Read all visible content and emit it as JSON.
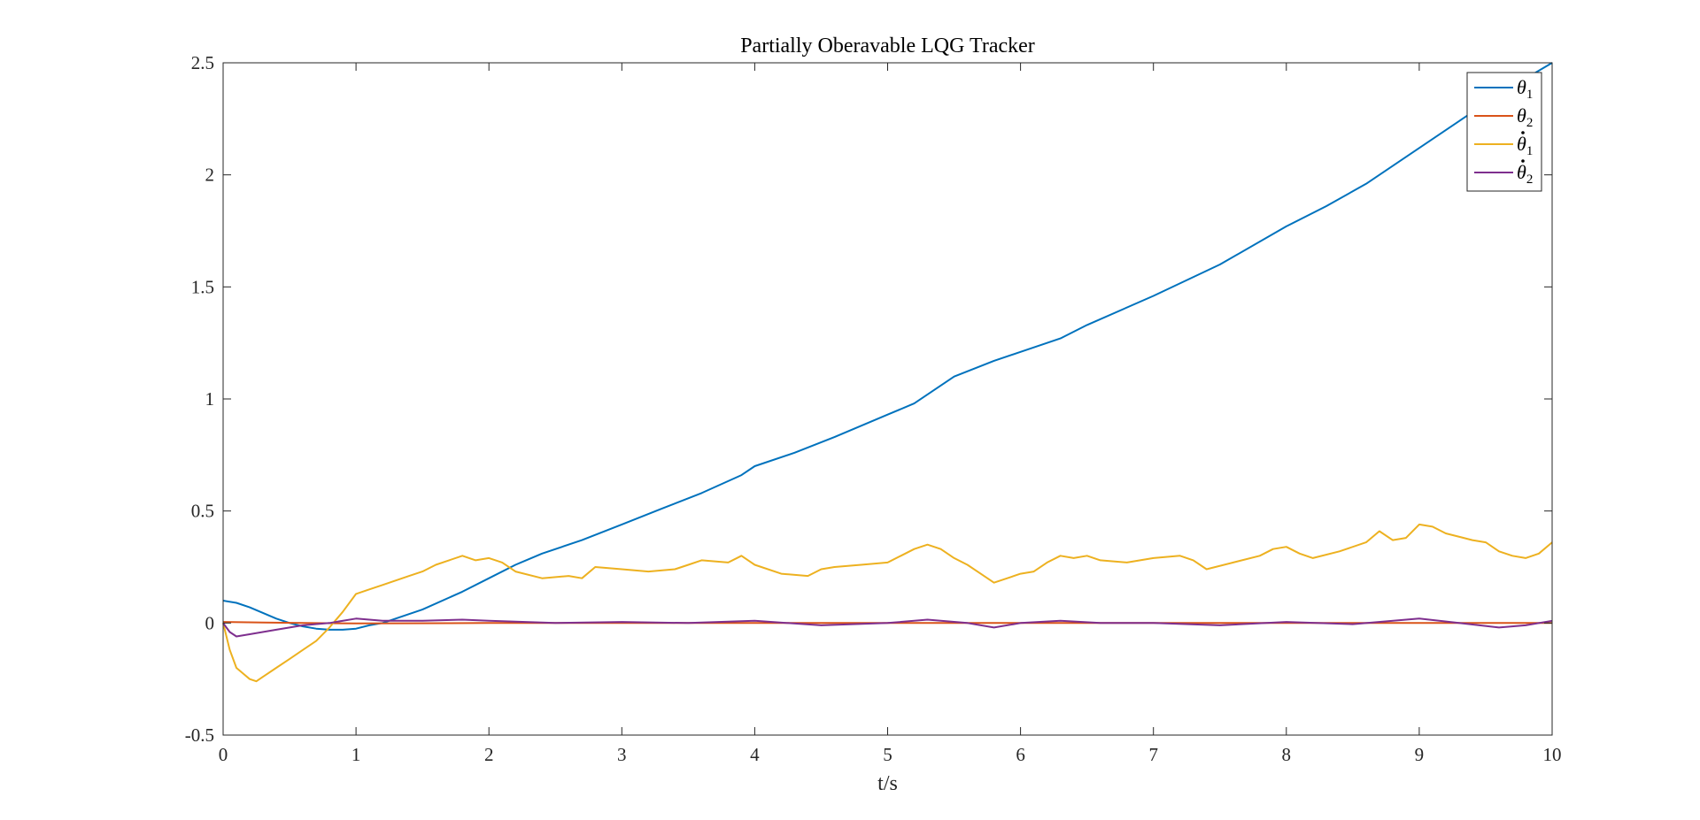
{
  "chart_data": {
    "type": "line",
    "title": "Partially Oberavable LQG Tracker",
    "xlabel": "t/s",
    "ylabel": "",
    "xlim": [
      0,
      10
    ],
    "ylim": [
      -0.5,
      2.5
    ],
    "xticks": [
      0,
      1,
      2,
      3,
      4,
      5,
      6,
      7,
      8,
      9,
      10
    ],
    "xtick_labels": [
      "0",
      "1",
      "2",
      "3",
      "4",
      "5",
      "6",
      "7",
      "8",
      "9",
      "10"
    ],
    "yticks": [
      -0.5,
      0,
      0.5,
      1,
      1.5,
      2,
      2.5
    ],
    "ytick_labels": [
      "-0.5",
      "0",
      "0.5",
      "1",
      "1.5",
      "2",
      "2.5"
    ],
    "grid": false,
    "legend_position": "top-right",
    "series": [
      {
        "name": "θ1",
        "legend_symbol": "θ",
        "legend_dot": false,
        "legend_sub": "1",
        "color": "#0072BD",
        "x": [
          0,
          0.1,
          0.2,
          0.3,
          0.4,
          0.5,
          0.6,
          0.7,
          0.8,
          0.9,
          1.0,
          1.1,
          1.2,
          1.5,
          1.8,
          2.0,
          2.2,
          2.4,
          2.7,
          3.0,
          3.3,
          3.6,
          3.9,
          4.0,
          4.3,
          4.6,
          5.0,
          5.2,
          5.5,
          5.8,
          6.0,
          6.3,
          6.5,
          7.0,
          7.5,
          8.0,
          8.3,
          8.6,
          9.0,
          9.3,
          9.6,
          10.0
        ],
        "y": [
          0.1,
          0.09,
          0.07,
          0.045,
          0.02,
          0.0,
          -0.015,
          -0.025,
          -0.03,
          -0.03,
          -0.025,
          -0.01,
          0.0,
          0.06,
          0.14,
          0.2,
          0.26,
          0.31,
          0.37,
          0.44,
          0.51,
          0.58,
          0.66,
          0.7,
          0.76,
          0.83,
          0.93,
          0.98,
          1.1,
          1.17,
          1.21,
          1.27,
          1.33,
          1.46,
          1.6,
          1.77,
          1.86,
          1.96,
          2.12,
          2.24,
          2.36,
          2.5
        ]
      },
      {
        "name": "θ2",
        "legend_symbol": "θ",
        "legend_dot": false,
        "legend_sub": "2",
        "color": "#D95319",
        "x": [
          0,
          0.3,
          0.6,
          1.0,
          2.0,
          4.0,
          6.0,
          8.0,
          10.0
        ],
        "y": [
          0.005,
          0.002,
          0.0,
          -0.002,
          0.0,
          0.0,
          0.0,
          0.0,
          0.0
        ]
      },
      {
        "name": "θ̇1",
        "legend_symbol": "θ",
        "legend_dot": true,
        "legend_sub": "1",
        "color": "#EDB120",
        "x": [
          0,
          0.05,
          0.1,
          0.2,
          0.25,
          0.3,
          0.4,
          0.5,
          0.6,
          0.7,
          0.8,
          0.9,
          1.0,
          1.1,
          1.2,
          1.3,
          1.4,
          1.5,
          1.6,
          1.7,
          1.8,
          1.9,
          2.0,
          2.1,
          2.2,
          2.4,
          2.6,
          2.7,
          2.8,
          3.0,
          3.2,
          3.4,
          3.5,
          3.6,
          3.8,
          3.9,
          4.0,
          4.2,
          4.4,
          4.5,
          4.6,
          4.8,
          5.0,
          5.1,
          5.2,
          5.3,
          5.4,
          5.5,
          5.6,
          5.7,
          5.8,
          5.9,
          6.0,
          6.1,
          6.2,
          6.3,
          6.4,
          6.5,
          6.6,
          6.8,
          7.0,
          7.2,
          7.3,
          7.4,
          7.6,
          7.8,
          7.9,
          8.0,
          8.1,
          8.2,
          8.4,
          8.6,
          8.7,
          8.8,
          8.9,
          9.0,
          9.1,
          9.2,
          9.4,
          9.5,
          9.6,
          9.7,
          9.8,
          9.9,
          10.0
        ],
        "y": [
          0.0,
          -0.12,
          -0.2,
          -0.25,
          -0.26,
          -0.24,
          -0.2,
          -0.16,
          -0.12,
          -0.08,
          -0.02,
          0.05,
          0.13,
          0.15,
          0.17,
          0.19,
          0.21,
          0.23,
          0.26,
          0.28,
          0.3,
          0.28,
          0.29,
          0.27,
          0.23,
          0.2,
          0.21,
          0.2,
          0.25,
          0.24,
          0.23,
          0.24,
          0.26,
          0.28,
          0.27,
          0.3,
          0.26,
          0.22,
          0.21,
          0.24,
          0.25,
          0.26,
          0.27,
          0.3,
          0.33,
          0.35,
          0.33,
          0.29,
          0.26,
          0.22,
          0.18,
          0.2,
          0.22,
          0.23,
          0.27,
          0.3,
          0.29,
          0.3,
          0.28,
          0.27,
          0.29,
          0.3,
          0.28,
          0.24,
          0.27,
          0.3,
          0.33,
          0.34,
          0.31,
          0.29,
          0.32,
          0.36,
          0.41,
          0.37,
          0.38,
          0.44,
          0.43,
          0.4,
          0.37,
          0.36,
          0.32,
          0.3,
          0.29,
          0.31,
          0.36
        ]
      },
      {
        "name": "θ̇2",
        "legend_symbol": "θ",
        "legend_dot": true,
        "legend_sub": "2",
        "color": "#7E2F8E",
        "x": [
          0,
          0.05,
          0.1,
          0.2,
          0.4,
          0.6,
          0.8,
          1.0,
          1.2,
          1.5,
          1.8,
          2.0,
          2.5,
          3.0,
          3.5,
          4.0,
          4.5,
          5.0,
          5.3,
          5.6,
          5.8,
          6.0,
          6.3,
          6.6,
          7.0,
          7.5,
          8.0,
          8.5,
          9.0,
          9.3,
          9.6,
          9.8,
          10.0
        ],
        "y": [
          0.0,
          -0.04,
          -0.06,
          -0.05,
          -0.03,
          -0.01,
          0.0,
          0.02,
          0.01,
          0.01,
          0.015,
          0.01,
          0.0,
          0.005,
          0.0,
          0.01,
          -0.01,
          0.0,
          0.015,
          0.0,
          -0.02,
          0.0,
          0.01,
          0.0,
          0.0,
          -0.01,
          0.005,
          -0.005,
          0.02,
          0.0,
          -0.02,
          -0.01,
          0.01
        ]
      }
    ]
  }
}
